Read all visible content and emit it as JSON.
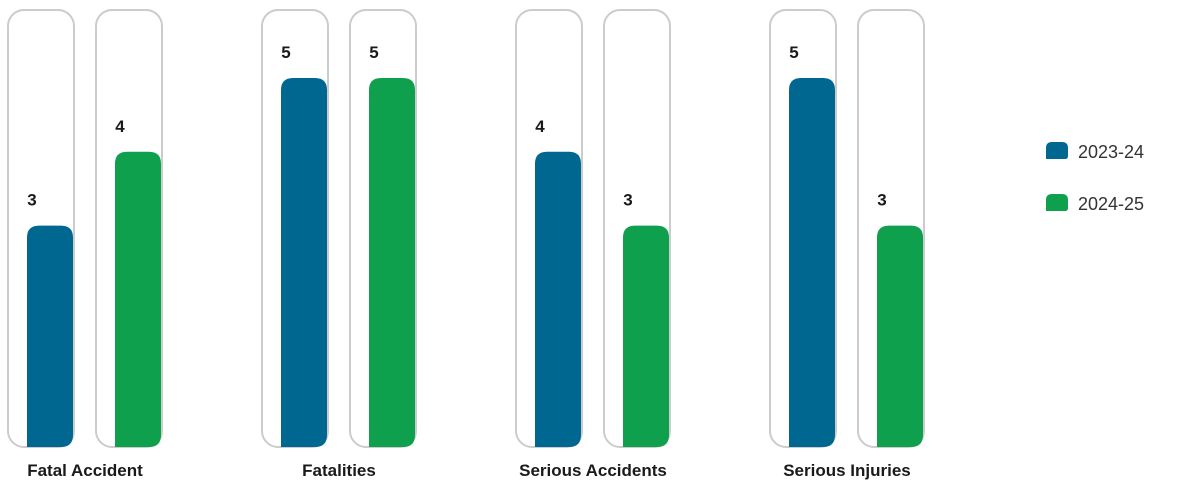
{
  "chart_data": {
    "type": "bar",
    "categories": [
      "Fatal Accident",
      "Fatalities",
      "Serious Accidents",
      "Serious Injuries"
    ],
    "series": [
      {
        "name": "2023-24",
        "values": [
          3,
          5,
          4,
          5
        ],
        "color": "#006890"
      },
      {
        "name": "2024-25",
        "values": [
          4,
          5,
          3,
          3
        ],
        "color": "#0ea04c"
      }
    ],
    "ylim": [
      0,
      5
    ],
    "grid": false,
    "legend_position": "right",
    "track_color": "#cccccc"
  }
}
